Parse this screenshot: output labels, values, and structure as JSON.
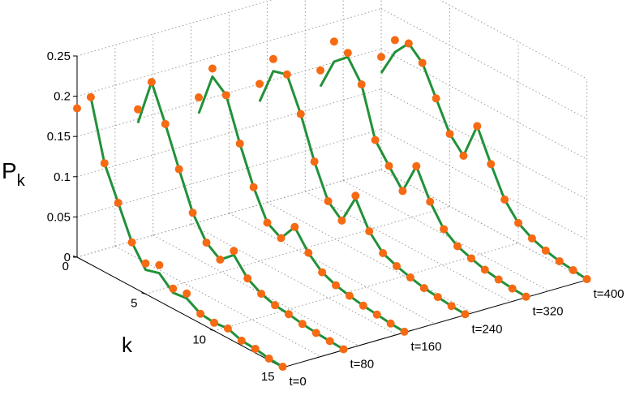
{
  "chart_data": {
    "type": "line",
    "title": "",
    "ylabel_main": "P",
    "ylabel_sub": "k",
    "xlabel": "k",
    "z_ticks": [
      "0",
      "0.05",
      "0.1",
      "0.15",
      "0.2",
      "0.25"
    ],
    "z_tick_values": [
      0,
      0.05,
      0.1,
      0.15,
      0.2,
      0.25
    ],
    "k_ticks": [
      "0",
      "5",
      "10",
      "15"
    ],
    "k_tick_values": [
      0,
      5,
      10,
      15
    ],
    "t_labels": [
      "t=0",
      "t=80",
      "t=160",
      "t=240",
      "t=320",
      "t=400"
    ],
    "t_values": [
      0,
      80,
      160,
      240,
      320,
      400
    ],
    "zlim": [
      0,
      0.25
    ],
    "klim": [
      0,
      15
    ],
    "grid": true,
    "colors": {
      "line": "#22913a",
      "marker": "#f56a13",
      "grid": "#9a9a9a"
    },
    "series": [
      {
        "t": 0,
        "points": [
          0.185,
          0.208,
          0.135,
          0.095,
          0.055,
          0.038,
          0.045,
          0.025,
          0.028,
          0.012,
          0.01,
          0.012,
          0.006,
          0.005,
          0.002,
          0.001
        ],
        "fit": [
          null,
          0.208,
          0.135,
          0.095,
          0.055,
          0.03,
          0.035,
          0.02,
          0.022,
          0.012,
          0.01,
          0.012,
          0.006,
          0.005,
          0.002,
          0.001
        ]
      },
      {
        "t": 80,
        "points": [
          0.162,
          0.205,
          0.162,
          0.115,
          0.07,
          0.042,
          0.03,
          0.05,
          0.025,
          0.015,
          0.01,
          0.008,
          0.005,
          0.003,
          0.002,
          0.001
        ],
        "fit": [
          0.145,
          0.205,
          0.162,
          0.115,
          0.07,
          0.042,
          0.03,
          0.045,
          0.025,
          0.015,
          0.01,
          0.008,
          0.005,
          0.003,
          0.002,
          0.001
        ]
      },
      {
        "t": 160,
        "points": [
          0.155,
          0.2,
          0.176,
          0.125,
          0.08,
          0.045,
          0.035,
          0.058,
          0.035,
          0.02,
          0.013,
          0.009,
          0.006,
          0.004,
          0.002,
          0.001
        ],
        "fit": [
          0.135,
          0.19,
          0.176,
          0.125,
          0.08,
          0.045,
          0.035,
          0.058,
          0.035,
          0.02,
          0.013,
          0.009,
          0.006,
          0.004,
          0.002,
          0.001
        ]
      },
      {
        "t": 240,
        "points": [
          0.15,
          0.19,
          0.18,
          0.14,
          0.09,
          0.05,
          0.035,
          0.075,
          0.04,
          0.022,
          0.015,
          0.01,
          0.006,
          0.004,
          0.002,
          0.001
        ],
        "fit": [
          0.128,
          0.175,
          0.18,
          0.14,
          0.09,
          0.05,
          0.035,
          0.072,
          0.04,
          0.022,
          0.015,
          0.01,
          0.006,
          0.004,
          0.002,
          0.001
        ]
      },
      {
        "t": 320,
        "points": [
          0.145,
          0.19,
          0.185,
          0.155,
          0.095,
          0.072,
          0.05,
          0.09,
          0.055,
          0.03,
          0.018,
          0.012,
          0.007,
          0.004,
          0.002,
          0.001
        ],
        "fit": [
          0.125,
          0.165,
          0.18,
          0.155,
          0.095,
          0.072,
          0.05,
          0.09,
          0.055,
          0.03,
          0.018,
          0.012,
          0.007,
          0.004,
          0.002,
          0.001
        ]
      },
      {
        "t": 400,
        "points": [
          0.14,
          0.17,
          0.175,
          0.16,
          0.125,
          0.09,
          0.072,
          0.118,
          0.08,
          0.045,
          0.025,
          0.015,
          0.009,
          0.005,
          0.003,
          0.001
        ],
        "fit": [
          0.12,
          0.155,
          0.175,
          0.16,
          0.125,
          0.09,
          0.072,
          0.118,
          0.08,
          0.045,
          0.025,
          0.015,
          0.009,
          0.005,
          0.003,
          0.001
        ]
      }
    ]
  }
}
